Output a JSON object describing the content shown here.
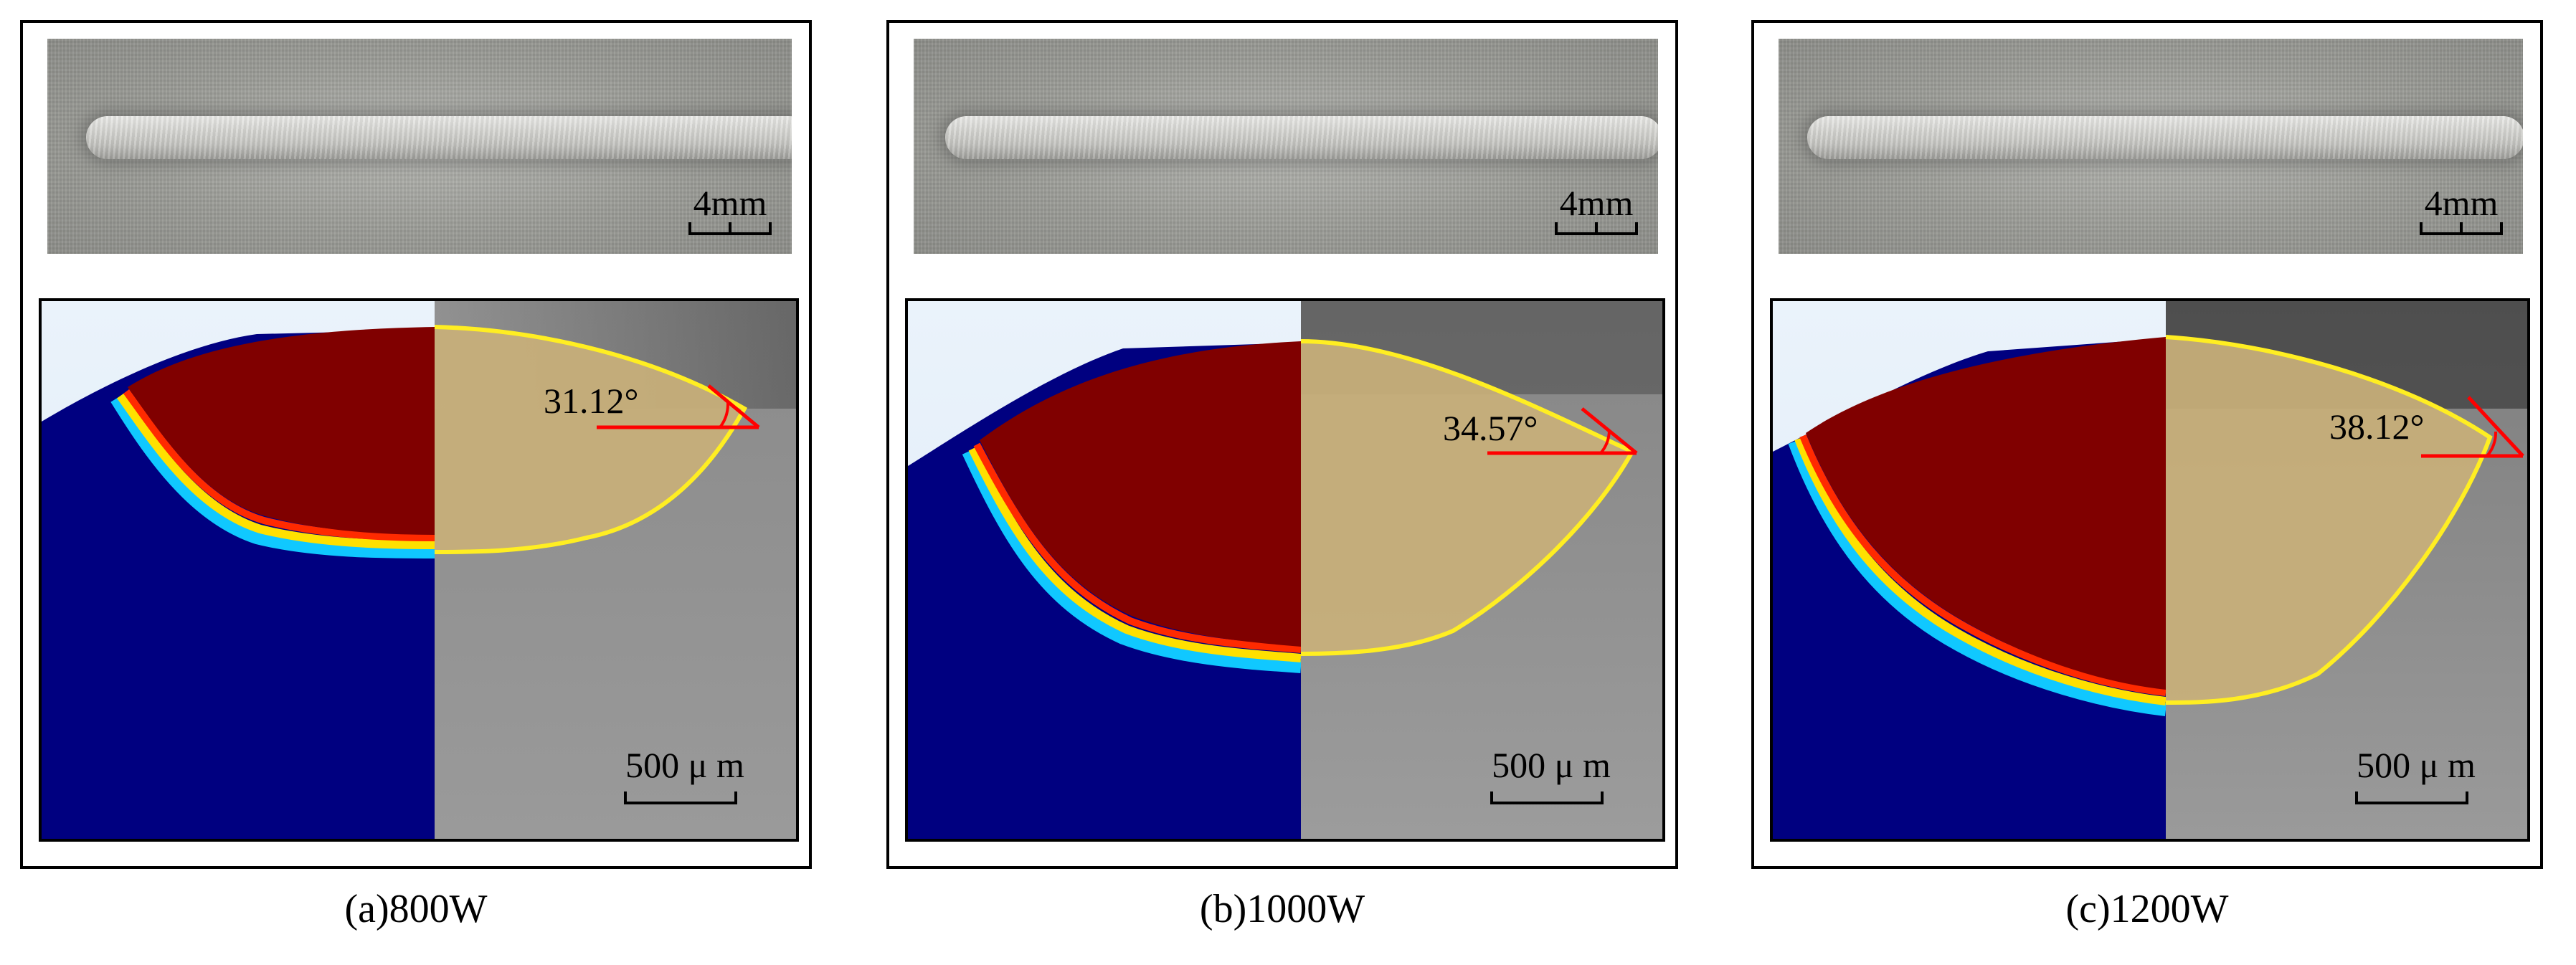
{
  "panels": [
    {
      "photo_scale": "4mm",
      "angle": "31.12°",
      "macro_scale": "500 μ m",
      "caption": "(a)800W"
    },
    {
      "photo_scale": "4mm",
      "angle": "34.57°",
      "macro_scale": "500 μ m",
      "caption": "(b)1000W"
    },
    {
      "photo_scale": "4mm",
      "angle": "38.12°",
      "macro_scale": "500 μ m",
      "caption": "(c)1200W"
    }
  ],
  "colors": {
    "simulation_molten": "#800000",
    "simulation_solid": "#00008b",
    "fusion_outline": "#ffee22",
    "angle_lines": "#ff0000",
    "fusion_fill": "#c9b07a"
  }
}
